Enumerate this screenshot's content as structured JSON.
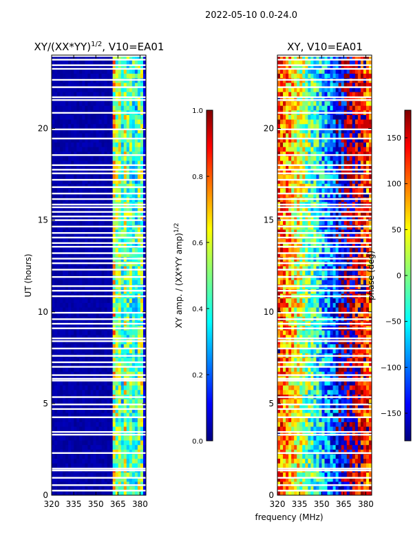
{
  "suptitle": "2022-05-10 0.0-24.0",
  "xlabel": "frequency (MHz)",
  "colors": {
    "background": "#ffffff",
    "gap": "#ffffff",
    "axis": "#000000",
    "jet_low": "#00007f",
    "jet_high": "#7f0000"
  },
  "chart_data": [
    {
      "type": "heatmap",
      "panel": "left",
      "title": "XY/(XX*YY)",
      "title_sup": "1/2",
      "title_suffix": ", V10=EA01",
      "ylabel": "UT (hours)",
      "xlabel": "",
      "xlim": [
        320,
        384
      ],
      "ylim": [
        0,
        24
      ],
      "xticks": [
        320,
        335,
        350,
        365,
        380
      ],
      "yticks": [
        0,
        5,
        10,
        15,
        20
      ],
      "quantity": "normalized XY amplitude",
      "description_values": {
        "low_freq_band_MHz": [
          320,
          361
        ],
        "low_freq_level": 0.02,
        "rfi_channels_MHz": [
          {
            "freq": 362,
            "level": 0.55
          },
          {
            "freq": 365,
            "level": 0.45
          },
          {
            "freq": 367,
            "level": 0.35
          },
          {
            "freq": 370,
            "level": 0.5
          },
          {
            "freq": 373,
            "level": 0.4
          },
          {
            "freq": 377,
            "level": 0.35
          },
          {
            "freq": 380,
            "level": 0.45
          }
        ]
      },
      "colorbar": {
        "label": "XY amp. / (XX*YY amp)",
        "label_sup": "1/2",
        "range": [
          0.0,
          1.0
        ],
        "ticks": [
          "0.0",
          "0.2",
          "0.4",
          "0.6",
          "0.8",
          "1.0"
        ],
        "tick_values": [
          0.0,
          0.2,
          0.4,
          0.6,
          0.8,
          1.0
        ]
      }
    },
    {
      "type": "heatmap",
      "panel": "right",
      "title": "XY, V10=EA01",
      "ylabel": "",
      "xlabel": "frequency (MHz)",
      "xlim": [
        320,
        384
      ],
      "ylim": [
        0,
        24
      ],
      "xticks": [
        320,
        335,
        350,
        365,
        380
      ],
      "yticks": [
        0,
        5,
        10,
        15,
        20
      ],
      "quantity": "XY phase (deg)",
      "description_values": {
        "phase_trend_deg_per_MHz": -6,
        "phase_at_320MHz_deg": 120
      },
      "colorbar": {
        "label": "phase (deg)",
        "range": [
          -180,
          180
        ],
        "ticks": [
          "150",
          "100",
          "50",
          "0",
          "−50",
          "−100",
          "−150"
        ],
        "tick_values": [
          150,
          100,
          50,
          0,
          -50,
          -100,
          -150
        ]
      }
    }
  ],
  "flagged_time_gaps_hours": [
    0.25,
    0.55,
    0.95,
    1.35,
    1.45,
    2.3,
    3.3,
    3.45,
    4.25,
    4.7,
    4.95,
    5.35,
    6.25,
    6.35,
    6.55,
    7.0,
    7.25,
    7.6,
    8.0,
    8.4,
    8.55,
    9.1,
    9.35,
    9.6,
    9.95,
    10.85,
    11.15,
    11.4,
    11.9,
    12.3,
    12.65,
    12.9,
    13.2,
    13.55,
    13.75,
    14.05,
    14.3,
    14.65,
    15.0,
    15.2,
    15.45,
    15.7,
    15.85,
    16.15,
    16.45,
    16.8,
    17.2,
    17.55,
    17.75,
    18.0,
    18.55,
    19.45,
    19.95,
    20.85,
    21.55,
    21.7,
    22.25,
    22.65,
    23.25,
    23.45,
    23.75,
    23.95
  ]
}
